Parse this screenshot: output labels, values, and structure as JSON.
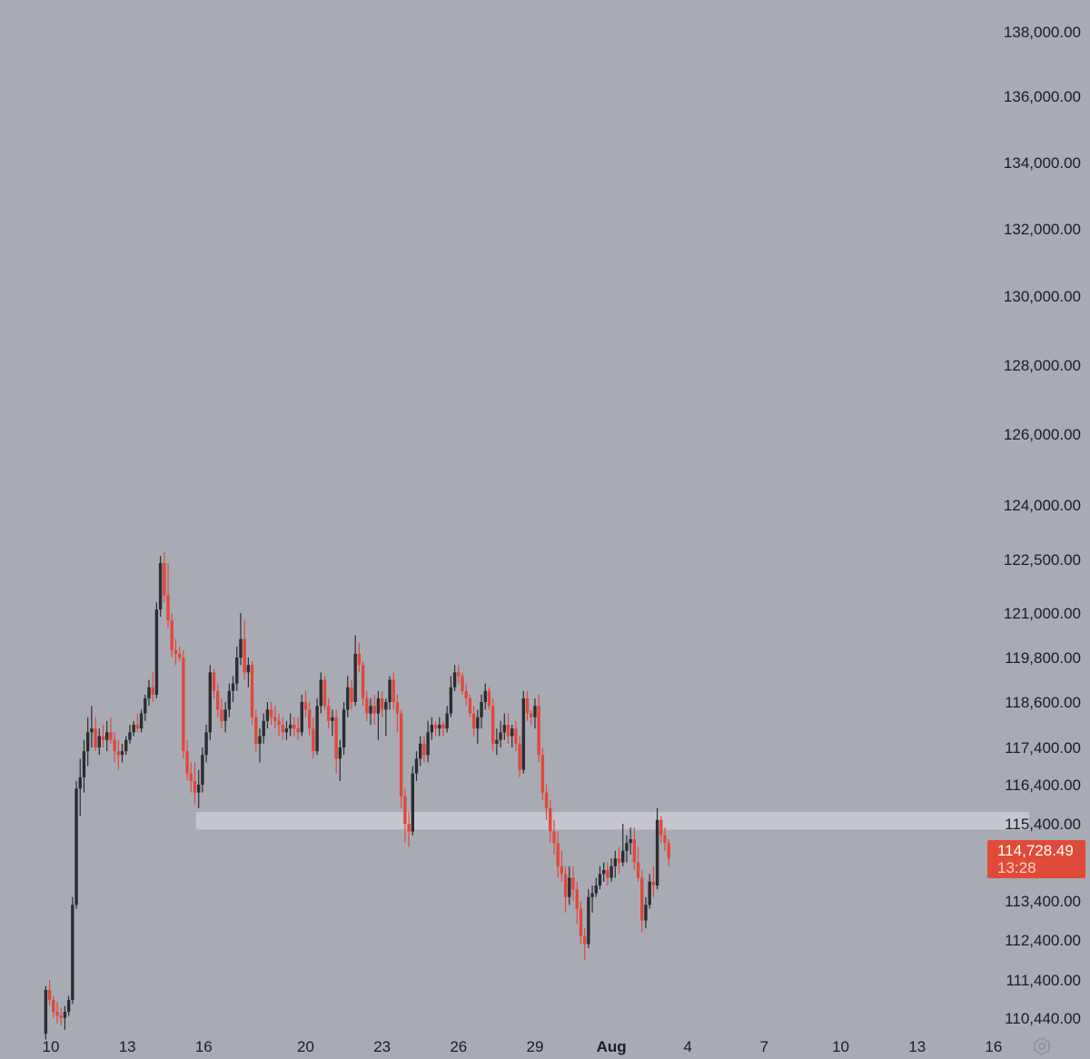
{
  "chart_data": {
    "type": "candlestick",
    "title": "",
    "xlabel": "",
    "ylabel": "",
    "y_axis_position": "right",
    "grid": false,
    "y_tick_labels": [
      {
        "value": 138000,
        "label": "138,000.00"
      },
      {
        "value": 136000,
        "label": "136,000.00"
      },
      {
        "value": 134000,
        "label": "134,000.00"
      },
      {
        "value": 132000,
        "label": "132,000.00"
      },
      {
        "value": 130000,
        "label": "130,000.00"
      },
      {
        "value": 128000,
        "label": "128,000.00"
      },
      {
        "value": 126000,
        "label": "126,000.00"
      },
      {
        "value": 124000,
        "label": "124,000.00"
      },
      {
        "value": 122500,
        "label": "122,500.00"
      },
      {
        "value": 121000,
        "label": "121,000.00"
      },
      {
        "value": 119800,
        "label": "119,800.00"
      },
      {
        "value": 118600,
        "label": "118,600.00"
      },
      {
        "value": 117400,
        "label": "117,400.00"
      },
      {
        "value": 116400,
        "label": "116,400.00"
      },
      {
        "value": 115400,
        "label": "115,400.00"
      },
      {
        "value": 113400,
        "label": "113,400.00"
      },
      {
        "value": 112400,
        "label": "112,400.00"
      },
      {
        "value": 111400,
        "label": "111,400.00"
      },
      {
        "value": 110440,
        "label": "110,440.00"
      }
    ],
    "x_tick_labels": [
      {
        "label": "10",
        "day": 10,
        "bold": false
      },
      {
        "label": "13",
        "day": 13,
        "bold": false
      },
      {
        "label": "16",
        "day": 16,
        "bold": false
      },
      {
        "label": "20",
        "day": 20,
        "bold": false
      },
      {
        "label": "23",
        "day": 23,
        "bold": false
      },
      {
        "label": "26",
        "day": 26,
        "bold": false
      },
      {
        "label": "29",
        "day": 29,
        "bold": false
      },
      {
        "label": "Aug",
        "day": 32,
        "bold": true
      },
      {
        "label": "4",
        "day": 35,
        "bold": false
      },
      {
        "label": "7",
        "day": 38,
        "bold": false
      },
      {
        "label": "10",
        "day": 41,
        "bold": false
      },
      {
        "label": "13",
        "day": 44,
        "bold": false
      },
      {
        "label": "16",
        "day": 47,
        "bold": false
      }
    ],
    "zone": {
      "low": 115250,
      "high": 115700,
      "start_day": 15.7,
      "end_day": 48.4,
      "color": "#c6c7ce"
    },
    "last_price": {
      "label": "114,728.49",
      "value": 114728.49,
      "countdown": "13:28"
    },
    "colors": {
      "up": "#2c2c31",
      "down": "#e0493b",
      "background": "#a9abb4",
      "price_tag": "#e04b39"
    },
    "candles": [
      [
        9.8,
        110050,
        111250,
        109900,
        111150
      ],
      [
        9.95,
        111150,
        111400,
        110750,
        110900
      ],
      [
        10.1,
        110900,
        111000,
        110450,
        110600
      ],
      [
        10.25,
        110600,
        110850,
        110300,
        110500
      ],
      [
        10.4,
        110500,
        110700,
        110250,
        110450
      ],
      [
        10.55,
        110450,
        110750,
        110150,
        110600
      ],
      [
        10.7,
        110600,
        111000,
        110500,
        110900
      ],
      [
        10.85,
        110900,
        113500,
        110800,
        113300
      ],
      [
        11.0,
        113300,
        116500,
        113200,
        116300
      ],
      [
        11.15,
        116300,
        117100,
        115600,
        116600
      ],
      [
        11.3,
        116600,
        117600,
        116200,
        117300
      ],
      [
        11.45,
        117300,
        118200,
        116900,
        117800
      ],
      [
        11.6,
        117800,
        118500,
        117400,
        117900
      ],
      [
        11.75,
        117900,
        118200,
        117300,
        117400
      ],
      [
        11.9,
        117400,
        117900,
        117200,
        117700
      ],
      [
        12.05,
        117700,
        118000,
        117400,
        117600
      ],
      [
        12.2,
        117600,
        118100,
        117300,
        117800
      ],
      [
        12.35,
        117800,
        118200,
        117500,
        117600
      ],
      [
        12.5,
        117600,
        117800,
        117000,
        117300
      ],
      [
        12.65,
        117300,
        117600,
        116800,
        117200
      ],
      [
        12.8,
        117200,
        117500,
        117000,
        117300
      ],
      [
        12.95,
        117300,
        117700,
        117200,
        117600
      ],
      [
        13.1,
        117600,
        118000,
        117500,
        117800
      ],
      [
        13.25,
        117800,
        118100,
        117700,
        118000
      ],
      [
        13.4,
        118000,
        118300,
        117800,
        117900
      ],
      [
        13.55,
        117900,
        118400,
        117800,
        118300
      ],
      [
        13.7,
        118300,
        118800,
        118100,
        118700
      ],
      [
        13.85,
        118700,
        119200,
        118500,
        119000
      ],
      [
        14.0,
        119000,
        119400,
        118600,
        118800
      ],
      [
        14.15,
        118800,
        121300,
        118700,
        121100
      ],
      [
        14.3,
        121100,
        122600,
        120900,
        122400
      ],
      [
        14.45,
        122400,
        122700,
        121300,
        121500
      ],
      [
        14.6,
        121500,
        122400,
        120600,
        120800
      ],
      [
        14.75,
        120800,
        121000,
        119800,
        120000
      ],
      [
        14.9,
        120000,
        120300,
        119600,
        119900
      ],
      [
        15.05,
        119900,
        120100,
        119700,
        119800
      ],
      [
        15.2,
        119800,
        120000,
        117100,
        117300
      ],
      [
        15.35,
        117300,
        117600,
        116500,
        116700
      ],
      [
        15.5,
        116700,
        117000,
        116200,
        116500
      ],
      [
        15.65,
        116500,
        117000,
        115900,
        116200
      ],
      [
        15.8,
        116200,
        116800,
        115800,
        116400
      ],
      [
        15.95,
        116400,
        117400,
        116200,
        117200
      ],
      [
        16.1,
        117200,
        118000,
        117000,
        117800
      ],
      [
        16.25,
        117800,
        119600,
        117600,
        119400
      ],
      [
        16.4,
        119400,
        119500,
        118700,
        118900
      ],
      [
        16.55,
        118900,
        119100,
        118200,
        118400
      ],
      [
        16.7,
        118400,
        118700,
        117900,
        118100
      ],
      [
        16.85,
        118100,
        118600,
        117800,
        118400
      ],
      [
        17.0,
        118400,
        119100,
        118200,
        118900
      ],
      [
        17.15,
        118900,
        119300,
        118600,
        119100
      ],
      [
        17.3,
        119100,
        120100,
        118900,
        119800
      ],
      [
        17.45,
        119800,
        121000,
        119600,
        120300
      ],
      [
        17.6,
        120300,
        120800,
        119200,
        119400
      ],
      [
        17.75,
        119400,
        119800,
        119000,
        119600
      ],
      [
        17.9,
        119600,
        119700,
        118000,
        118200
      ],
      [
        18.05,
        118200,
        118400,
        117300,
        117500
      ],
      [
        18.2,
        117500,
        117900,
        117000,
        117700
      ],
      [
        18.35,
        117700,
        118300,
        117500,
        118100
      ],
      [
        18.5,
        118100,
        118600,
        117900,
        118400
      ],
      [
        18.65,
        118400,
        118600,
        118000,
        118200
      ],
      [
        18.8,
        118200,
        118500,
        117900,
        118100
      ],
      [
        18.95,
        118100,
        118300,
        117700,
        118000
      ],
      [
        19.1,
        118000,
        118200,
        117600,
        117800
      ],
      [
        19.25,
        117800,
        118100,
        117600,
        117900
      ],
      [
        19.4,
        117900,
        118300,
        117700,
        118000
      ],
      [
        19.55,
        118000,
        118200,
        117700,
        117900
      ],
      [
        19.7,
        117900,
        118200,
        117600,
        117800
      ],
      [
        19.85,
        117800,
        118800,
        117700,
        118600
      ],
      [
        20.0,
        118600,
        118900,
        118200,
        118400
      ],
      [
        20.15,
        118400,
        118600,
        117700,
        117900
      ],
      [
        20.3,
        117900,
        118200,
        117100,
        117300
      ],
      [
        20.45,
        117300,
        118700,
        117200,
        118500
      ],
      [
        20.6,
        118500,
        119400,
        118300,
        119200
      ],
      [
        20.75,
        119200,
        119300,
        118400,
        118500
      ],
      [
        20.9,
        118500,
        118700,
        117900,
        118100
      ],
      [
        21.05,
        118100,
        118400,
        117700,
        118200
      ],
      [
        21.2,
        118200,
        118400,
        116700,
        117100
      ],
      [
        21.35,
        117100,
        117600,
        116500,
        117400
      ],
      [
        21.5,
        117400,
        118600,
        117200,
        118400
      ],
      [
        21.65,
        118400,
        119300,
        118200,
        119000
      ],
      [
        21.8,
        119000,
        119200,
        118400,
        118600
      ],
      [
        21.95,
        118600,
        120400,
        118500,
        119900
      ],
      [
        22.1,
        119900,
        120200,
        119400,
        119600
      ],
      [
        22.25,
        119600,
        119700,
        118500,
        118700
      ],
      [
        22.4,
        118700,
        118900,
        118100,
        118300
      ],
      [
        22.55,
        118300,
        118700,
        118000,
        118500
      ],
      [
        22.7,
        118500,
        118800,
        118000,
        118300
      ],
      [
        22.85,
        118300,
        118900,
        117600,
        118700
      ],
      [
        23.0,
        118700,
        118900,
        118200,
        118400
      ],
      [
        23.15,
        118400,
        118700,
        117700,
        118600
      ],
      [
        23.3,
        118600,
        119300,
        118400,
        119200
      ],
      [
        23.45,
        119200,
        119400,
        118400,
        118600
      ],
      [
        23.6,
        118600,
        118800,
        117800,
        118300
      ],
      [
        23.75,
        118300,
        118400,
        115800,
        116100
      ],
      [
        23.9,
        116100,
        116300,
        114900,
        115400
      ],
      [
        24.05,
        115400,
        115700,
        114800,
        115200
      ],
      [
        24.2,
        115200,
        116900,
        115100,
        116700
      ],
      [
        24.35,
        116700,
        117300,
        116500,
        117100
      ],
      [
        24.5,
        117100,
        117700,
        116900,
        117500
      ],
      [
        24.65,
        117500,
        117700,
        117000,
        117200
      ],
      [
        24.8,
        117200,
        118100,
        117000,
        117800
      ],
      [
        24.95,
        117800,
        118200,
        117600,
        118000
      ],
      [
        25.1,
        118000,
        118100,
        117700,
        117900
      ],
      [
        25.25,
        117900,
        118200,
        117700,
        118000
      ],
      [
        25.4,
        118000,
        118100,
        117700,
        117900
      ],
      [
        25.55,
        117900,
        118500,
        117800,
        118300
      ],
      [
        25.7,
        118300,
        119300,
        118200,
        119000
      ],
      [
        25.85,
        119000,
        119600,
        118900,
        119400
      ],
      [
        26.0,
        119400,
        119600,
        119100,
        119300
      ],
      [
        26.15,
        119300,
        119400,
        118800,
        118900
      ],
      [
        26.3,
        118900,
        119100,
        118500,
        118700
      ],
      [
        26.45,
        118700,
        118800,
        118200,
        118300
      ],
      [
        26.6,
        118300,
        118500,
        117700,
        117900
      ],
      [
        26.75,
        117900,
        118400,
        117500,
        118200
      ],
      [
        26.9,
        118200,
        118800,
        117900,
        118600
      ],
      [
        27.05,
        118600,
        119100,
        118400,
        118900
      ],
      [
        27.2,
        118900,
        119000,
        118400,
        118500
      ],
      [
        27.35,
        118500,
        118700,
        117300,
        117500
      ],
      [
        27.5,
        117500,
        117900,
        117200,
        117600
      ],
      [
        27.65,
        117600,
        118100,
        117400,
        117800
      ],
      [
        27.8,
        117800,
        118300,
        117600,
        118000
      ],
      [
        27.95,
        118000,
        118300,
        117500,
        117700
      ],
      [
        28.1,
        117700,
        118000,
        117400,
        117900
      ],
      [
        28.25,
        117900,
        118100,
        117300,
        117500
      ],
      [
        28.4,
        117500,
        117700,
        116600,
        116800
      ],
      [
        28.55,
        116800,
        118900,
        116700,
        118700
      ],
      [
        28.7,
        118700,
        118900,
        118100,
        118300
      ],
      [
        28.85,
        118300,
        118400,
        118000,
        118200
      ],
      [
        29.0,
        118200,
        118700,
        117900,
        118500
      ],
      [
        29.15,
        118500,
        118800,
        117000,
        117200
      ],
      [
        29.3,
        117200,
        117400,
        116000,
        116200
      ],
      [
        29.45,
        116200,
        116400,
        115500,
        115800
      ],
      [
        29.6,
        115800,
        116000,
        114900,
        115200
      ],
      [
        29.75,
        115200,
        115500,
        114600,
        114900
      ],
      [
        29.9,
        114900,
        115200,
        114000,
        114300
      ],
      [
        30.05,
        114300,
        114700,
        113900,
        114100
      ],
      [
        30.2,
        114100,
        114300,
        113100,
        113500
      ],
      [
        30.35,
        113500,
        114300,
        113300,
        114000
      ],
      [
        30.5,
        114000,
        114300,
        113400,
        113700
      ],
      [
        30.65,
        113700,
        113900,
        112800,
        113200
      ],
      [
        30.8,
        113200,
        113400,
        112300,
        112500
      ],
      [
        30.95,
        112500,
        112700,
        111900,
        112300
      ],
      [
        31.1,
        112300,
        113700,
        112200,
        113500
      ],
      [
        31.25,
        113500,
        113800,
        113100,
        113600
      ],
      [
        31.4,
        113600,
        114000,
        113500,
        113800
      ],
      [
        31.55,
        113800,
        114300,
        113700,
        114100
      ],
      [
        31.7,
        114100,
        114400,
        113900,
        114200
      ],
      [
        31.85,
        114200,
        114400,
        113800,
        114000
      ],
      [
        32.0,
        114000,
        114500,
        113900,
        114300
      ],
      [
        32.15,
        114300,
        114700,
        114000,
        114500
      ],
      [
        32.3,
        114500,
        114800,
        114100,
        114400
      ],
      [
        32.45,
        114400,
        115400,
        114300,
        114700
      ],
      [
        32.6,
        114700,
        115100,
        114400,
        114900
      ],
      [
        32.75,
        114900,
        115300,
        114600,
        115000
      ],
      [
        32.9,
        115000,
        115300,
        114200,
        114400
      ],
      [
        33.05,
        114400,
        114800,
        113900,
        114000
      ],
      [
        33.2,
        114000,
        114200,
        112600,
        112900
      ],
      [
        33.35,
        112900,
        113500,
        112700,
        113300
      ],
      [
        33.5,
        113300,
        114100,
        113200,
        113900
      ],
      [
        33.65,
        113900,
        114300,
        113500,
        113800
      ],
      [
        33.8,
        113800,
        115800,
        113700,
        115500
      ],
      [
        33.95,
        115500,
        115600,
        114900,
        115100
      ],
      [
        34.1,
        115100,
        115300,
        114700,
        114900
      ],
      [
        34.25,
        114900,
        115000,
        114300,
        114500
      ]
    ]
  }
}
